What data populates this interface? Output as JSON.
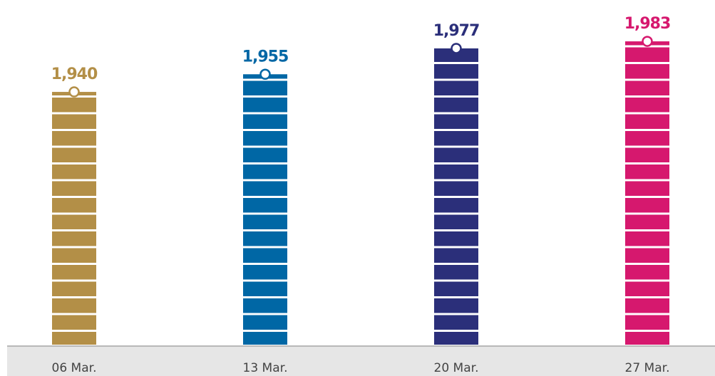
{
  "chart_data": {
    "type": "bar",
    "categories": [
      "06 Mar.",
      "13 Mar.",
      "20 Mar.",
      "27 Mar."
    ],
    "values": [
      1940,
      1955,
      1977,
      1983
    ],
    "value_labels": [
      "1,940",
      "1,955",
      "1,977",
      "1,983"
    ],
    "colors": [
      "#b38f47",
      "#0067a5",
      "#2b2f7a",
      "#d6186e"
    ],
    "ylim": [
      1725,
      2000
    ]
  }
}
